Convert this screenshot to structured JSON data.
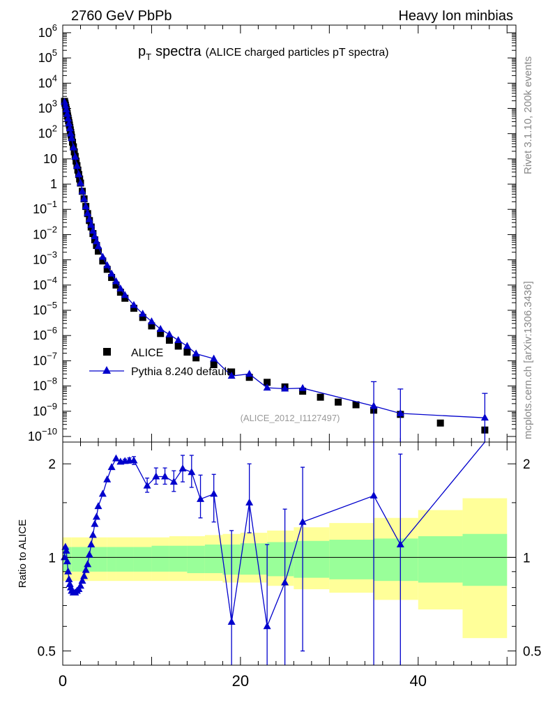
{
  "header": {
    "left": "2760 GeV PbPb",
    "right": "Heavy Ion minbias"
  },
  "side_labels": {
    "rivet": "Rivet 3.1.10,  200k events",
    "mcplots": "mcplots.cern.ch [arXiv:1306.3436]"
  },
  "chart_data": [
    {
      "type": "scatter",
      "title_main": "p",
      "title_sub": "T",
      "title_word": "spectra",
      "title_note": "(ALICE charged particles pT spectra)",
      "watermark": "(ALICE_2012_I1127497)",
      "y_scale": "log",
      "ylim": [
        6e-11,
        2000000.0
      ],
      "xlim": [
        0,
        51
      ],
      "grid": false,
      "legend_position": "bottom-left",
      "y_tick_mantissa": "10",
      "y_tick_exponents": [
        "-10",
        "-9",
        "-8",
        "-7",
        "-6",
        "-5",
        "-4",
        "-3",
        "-2",
        "-1",
        "",
        "",
        "",
        "",
        "",
        "",
        ""
      ],
      "y_tick_labels_plain": [
        "1",
        "10",
        "10"
      ],
      "series": [
        {
          "name": "ALICE",
          "marker": "square",
          "color": "#000000",
          "x": [
            0.2,
            0.25,
            0.3,
            0.35,
            0.4,
            0.45,
            0.5,
            0.55,
            0.6,
            0.65,
            0.7,
            0.75,
            0.8,
            0.85,
            0.9,
            0.95,
            1.0,
            1.1,
            1.2,
            1.3,
            1.4,
            1.5,
            1.6,
            1.7,
            1.8,
            1.9,
            2.0,
            2.2,
            2.4,
            2.6,
            2.8,
            3.0,
            3.2,
            3.4,
            3.6,
            3.8,
            4.0,
            4.5,
            5.0,
            5.5,
            6.0,
            6.5,
            7.0,
            8.0,
            9.0,
            10.0,
            11.0,
            12.0,
            13.0,
            14.0,
            15.0,
            17.0,
            19.0,
            21.0,
            23.0,
            25.0,
            27.0,
            29.0,
            31.0,
            33.0,
            35.0,
            38.0,
            42.5,
            47.5
          ],
          "y": [
            1900,
            1600,
            1350,
            1100,
            920,
            760,
            620,
            500,
            410,
            330,
            270,
            220,
            175,
            140,
            112,
            90,
            72,
            46,
            30,
            19,
            12.5,
            8.2,
            5.4,
            3.6,
            2.4,
            1.6,
            1.1,
            0.52,
            0.26,
            0.13,
            0.068,
            0.036,
            0.02,
            0.011,
            0.0062,
            0.0037,
            0.0022,
            0.0009,
            0.00042,
            0.0002,
            0.0001,
            5.2e-05,
            3e-05,
            1.2e-05,
            5.2e-06,
            2.4e-06,
            1.2e-06,
            6.5e-07,
            3.8e-07,
            2.2e-07,
            1.3e-07,
            7e-08,
            3.6e-08,
            2.2e-08,
            1.4e-08,
            9.2e-09,
            6.2e-09,
            3.6e-09,
            2.3e-09,
            1.8e-09,
            1.1e-09,
            7.5e-10,
            3.4e-10,
            1.8e-10
          ]
        },
        {
          "name": "Pythia 8.240 default",
          "marker": "triangle",
          "color": "#0000cc",
          "x": [
            0.2,
            0.3,
            0.4,
            0.5,
            0.6,
            0.7,
            0.8,
            0.9,
            1.0,
            1.2,
            1.4,
            1.6,
            1.8,
            2.0,
            2.2,
            2.4,
            2.6,
            2.8,
            3.0,
            3.2,
            3.4,
            3.6,
            3.8,
            4.0,
            4.5,
            5.0,
            5.5,
            6.0,
            6.5,
            7.0,
            8.0,
            9.0,
            10.0,
            11.0,
            12.0,
            13.0,
            14.0,
            15.0,
            17.0,
            19.0,
            21.0,
            23.0,
            25.0,
            27.0,
            35.0,
            38.0,
            47.5
          ],
          "y": [
            1800,
            1300,
            900,
            600,
            390,
            250,
            160,
            100,
            65,
            28,
            12,
            5.2,
            2.4,
            1.1,
            0.52,
            0.26,
            0.13,
            0.07,
            0.04,
            0.024,
            0.014,
            0.0085,
            0.0053,
            0.0034,
            0.0013,
            0.0006,
            0.00028,
            0.00014,
            7.2e-05,
            4e-05,
            1.6e-05,
            7.2e-06,
            3.6e-06,
            1.8e-06,
            1.1e-06,
            6.5e-07,
            3.8e-07,
            1.9e-07,
            1.2e-07,
            2.5e-08,
            3e-08,
            8.5e-09,
            7.8e-09,
            8.2e-09,
            1.6e-09,
            8.2e-10,
            5.5e-10
          ],
          "errors": [
            0,
            0,
            0,
            0,
            0,
            0,
            0,
            0,
            0,
            0,
            0,
            0,
            0,
            0,
            0,
            0,
            0,
            0,
            0,
            0,
            0,
            0,
            0,
            0,
            0,
            0,
            0,
            0,
            0,
            0,
            0,
            0,
            0,
            0,
            0,
            0,
            0,
            0,
            0,
            0,
            0,
            0,
            0,
            0,
            1,
            1,
            1
          ]
        }
      ]
    },
    {
      "type": "scatter",
      "ylabel": "Ratio to ALICE",
      "y_scale": "log",
      "ylim": [
        0.45,
        2.35
      ],
      "xlim": [
        0,
        51
      ],
      "y_ticks": [
        0.5,
        1,
        2
      ],
      "y_tick_labels": [
        "0.5",
        "1",
        "2"
      ],
      "x_ticks": [
        0,
        20,
        40
      ],
      "x_tick_labels": [
        "0",
        "20",
        "40"
      ],
      "reference_line": 1,
      "band_edges": [
        0,
        1,
        2,
        3,
        4,
        5,
        6,
        8,
        10,
        12,
        14,
        16,
        18,
        20,
        23,
        26,
        30,
        35,
        40,
        45,
        50
      ],
      "band_green_low": [
        0.9,
        0.9,
        0.9,
        0.9,
        0.9,
        0.9,
        0.9,
        0.9,
        0.9,
        0.9,
        0.89,
        0.89,
        0.88,
        0.88,
        0.87,
        0.86,
        0.85,
        0.84,
        0.83,
        0.81
      ],
      "band_green_high": [
        1.08,
        1.08,
        1.08,
        1.08,
        1.08,
        1.08,
        1.08,
        1.08,
        1.09,
        1.09,
        1.09,
        1.1,
        1.1,
        1.11,
        1.12,
        1.13,
        1.14,
        1.15,
        1.17,
        1.19
      ],
      "band_yellow_low": [
        0.84,
        0.84,
        0.84,
        0.84,
        0.84,
        0.84,
        0.84,
        0.84,
        0.84,
        0.84,
        0.84,
        0.84,
        0.83,
        0.83,
        0.81,
        0.79,
        0.77,
        0.73,
        0.68,
        0.55
      ],
      "band_yellow_high": [
        1.16,
        1.16,
        1.16,
        1.16,
        1.16,
        1.16,
        1.16,
        1.16,
        1.16,
        1.17,
        1.17,
        1.18,
        1.19,
        1.2,
        1.22,
        1.25,
        1.29,
        1.34,
        1.42,
        1.55
      ],
      "series": [
        {
          "name": "Pythia 8.240 default",
          "color": "#0000cc",
          "x": [
            0.2,
            0.3,
            0.4,
            0.5,
            0.6,
            0.7,
            0.8,
            0.9,
            1.0,
            1.2,
            1.4,
            1.6,
            1.8,
            2.0,
            2.2,
            2.4,
            2.6,
            2.8,
            3.0,
            3.2,
            3.4,
            3.6,
            3.8,
            4.0,
            4.5,
            5.0,
            5.5,
            6.0,
            6.5,
            7.0,
            7.5,
            8.0,
            9.5,
            10.5,
            11.5,
            12.5,
            13.5,
            14.5,
            15.5,
            17.0,
            19.0,
            21.0,
            23.0,
            25.0,
            27.0,
            35.0,
            38.0,
            47.5
          ],
          "y": [
            1.0,
            1.08,
            1.05,
            0.97,
            0.9,
            0.85,
            0.82,
            0.8,
            0.78,
            0.77,
            0.77,
            0.78,
            0.79,
            0.81,
            0.84,
            0.87,
            0.91,
            0.95,
            1.02,
            1.1,
            1.18,
            1.28,
            1.35,
            1.46,
            1.6,
            1.78,
            1.95,
            2.08,
            2.03,
            2.04,
            2.05,
            2.05,
            1.7,
            1.82,
            1.82,
            1.75,
            1.93,
            1.88,
            1.54,
            1.6,
            0.62,
            1.5,
            0.6,
            0.83,
            1.3,
            1.58,
            1.1,
            2.5
          ],
          "err_lo": [
            0,
            0,
            0,
            0,
            0,
            0,
            0,
            0,
            0,
            0,
            0,
            0,
            0,
            0,
            0,
            0,
            0,
            0,
            0,
            0,
            0,
            0,
            0,
            0,
            0,
            0,
            0,
            0,
            0.02,
            0.03,
            0.04,
            0.06,
            0.08,
            0.1,
            0.1,
            0.12,
            0.18,
            0.2,
            0.2,
            0.3,
            0.2,
            0.3,
            0.2,
            0.45,
            0.8,
            1.4,
            1.1,
            0
          ],
          "err_hi": [
            0,
            0,
            0,
            0,
            0,
            0,
            0,
            0,
            0,
            0,
            0,
            0,
            0,
            0,
            0,
            0,
            0,
            0,
            0,
            0,
            0,
            0,
            0,
            0,
            0,
            0,
            0,
            0,
            0.02,
            0.03,
            0.04,
            0.06,
            0.1,
            0.12,
            0.12,
            0.15,
            0.2,
            0.25,
            0.3,
            0.25,
            0.6,
            0.5,
            0.5,
            0.6,
            0.65,
            0.8,
            1.05,
            0
          ]
        }
      ]
    }
  ]
}
